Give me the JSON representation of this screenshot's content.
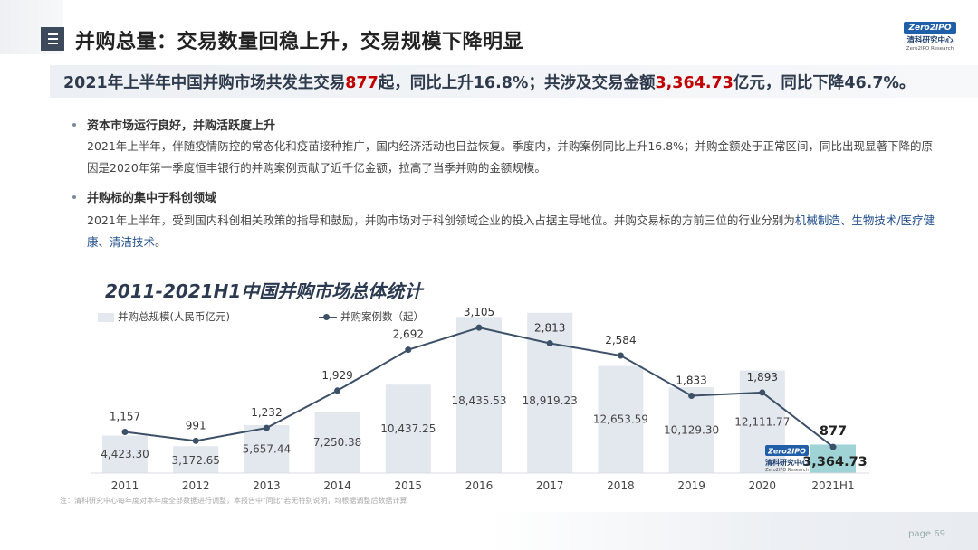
{
  "header": {
    "title": "并购总量：交易数量回稳上升，交易规模下降明显",
    "logo_badge": "Zero2IPO",
    "logo_cn": "清科研究中心",
    "logo_en": "Zero2IPO Research"
  },
  "summary": {
    "part1": "2021年上半年中国并购市场共发生交易",
    "count": "877",
    "part2": "起，同比上升16.8%；共涉及交易金额",
    "amount": "3,364.73",
    "part3": "亿元，同比下降46.7%。"
  },
  "sections": [
    {
      "title": "资本市场运行良好，并购活跃度上升",
      "text": "2021年上半年，伴随疫情防控的常态化和疫苗接种推广，国内经济活动也日益恢复。季度内，并购案例同比上升16.8%；并购金额处于正常区间，同比出现显著下降的原因是2020年第一季度恒丰银行的并购案例贡献了近千亿金额，拉高了当季并购的金额规模。"
    },
    {
      "title": "并购标的集中于科创领域",
      "text_before": "2021年上半年，受到国内科创相关政策的指导和鼓励，并购市场对于科创领域企业的投入占据主导地位。并购交易标的方前三位的行业分别为",
      "text_highlight": "机械制造、生物技术/医疗健康、清洁技术",
      "text_after": "。"
    }
  ],
  "chart_data": {
    "type": "bar",
    "title": "2011-2021H1中国并购市场总体统计",
    "categories": [
      "2011",
      "2012",
      "2013",
      "2014",
      "2015",
      "2016",
      "2017",
      "2018",
      "2019",
      "2020",
      "2021H1"
    ],
    "series": [
      {
        "name": "并购总规模(人民币亿元)",
        "type": "bar",
        "values": [
          4423.3,
          3172.65,
          5657.44,
          7250.38,
          10437.25,
          18435.53,
          18919.23,
          12653.59,
          10129.3,
          12111.77,
          3364.73
        ],
        "labels": [
          "4,423.30",
          "3,172.65",
          "5,657.44",
          "7,250.38",
          "10,437.25",
          "18,435.53",
          "18,919.23",
          "12,653.59",
          "10,129.30",
          "12,111.77",
          "3,364.73"
        ],
        "color": "#e3e8ee",
        "highlight_color": "#9fd3d6"
      },
      {
        "name": "并购案例数（起）",
        "type": "line",
        "values": [
          1157,
          991,
          1232,
          1929,
          2692,
          3105,
          2813,
          2584,
          1833,
          1893,
          877
        ],
        "labels": [
          "1,157",
          "991",
          "1,232",
          "1,929",
          "2,692",
          "3,105",
          "2,813",
          "2,584",
          "1,833",
          "1,893",
          "877"
        ],
        "color": "#3c5068"
      }
    ],
    "legend_position": "top-left",
    "grid": false
  },
  "watermark": {
    "badge": "Zero2IPO",
    "cn": "清科研究中心",
    "en": "Zero2IPO Research"
  },
  "note": "注：清科研究中心每年度对本年度全部数据进行调整，本报告中\"同比\"若无特别说明，均根据调整后数据计算",
  "footer": {
    "page_label": "page",
    "page_number": "69"
  }
}
